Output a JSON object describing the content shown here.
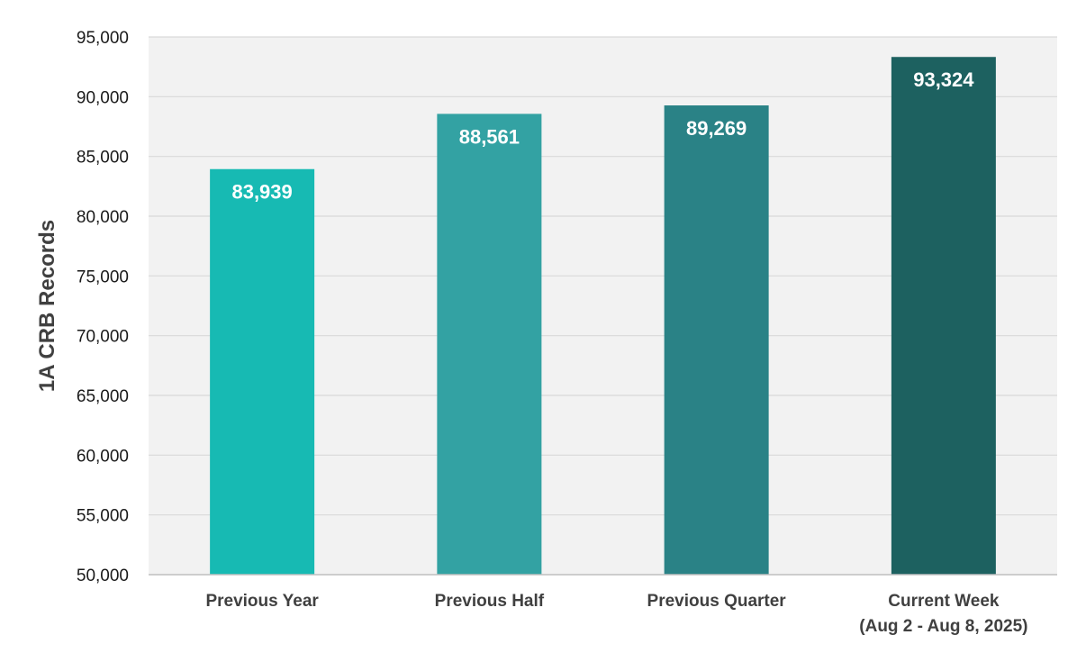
{
  "chart_data": {
    "type": "bar",
    "title": "",
    "xlabel": "",
    "ylabel": "1A CRB Records",
    "categories": [
      [
        "Previous Year"
      ],
      [
        "Previous Half"
      ],
      [
        "Previous Quarter"
      ],
      [
        "Current Week",
        "(Aug 2 - Aug 8, 2025)"
      ]
    ],
    "values": [
      83939,
      88561,
      89269,
      93324
    ],
    "value_labels": [
      "83,939",
      "88,561",
      "89,269",
      "93,324"
    ],
    "ylim": [
      50000,
      95000
    ],
    "ytick_step": 5000,
    "ytick_labels": [
      "50,000",
      "55,000",
      "60,000",
      "65,000",
      "70,000",
      "75,000",
      "80,000",
      "85,000",
      "90,000",
      "95,000"
    ],
    "grid": true,
    "legend": "none",
    "colors": {
      "plot_background": "#f2f2f2",
      "gridline": "#d9d9d9",
      "axis_line": "#bfbfbf",
      "bars": [
        "#17bab3",
        "#33a2a3",
        "#2a8286",
        "#1d6160"
      ]
    }
  }
}
